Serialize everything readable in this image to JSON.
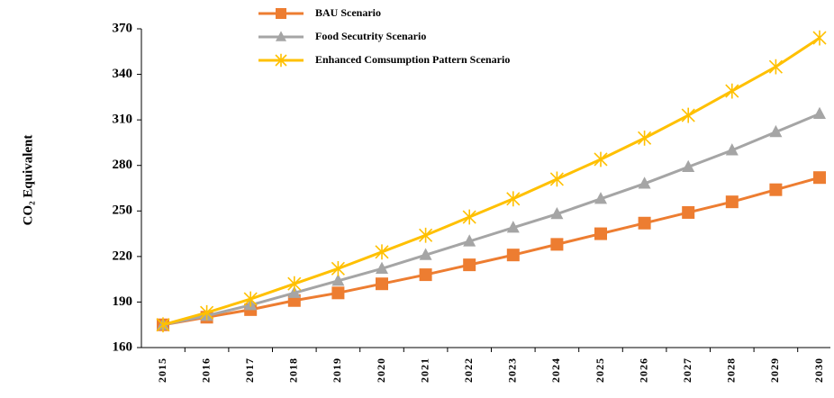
{
  "chart_data": {
    "type": "line",
    "y_label": "CO₂ Equivalent",
    "categories": [
      "2015",
      "2016",
      "2017",
      "2018",
      "2019",
      "2020",
      "2021",
      "2022",
      "2023",
      "2024",
      "2025",
      "2026",
      "2027",
      "2028",
      "2029",
      "2030"
    ],
    "series": [
      {
        "name": "BAU Scenario",
        "color": "#ED7D31",
        "marker": "square",
        "values": [
          175,
          180,
          185,
          191,
          196,
          202,
          208,
          214.5,
          221,
          228,
          235,
          242,
          249,
          256,
          264,
          272
        ]
      },
      {
        "name": "Food Secutrity Scenario",
        "color": "#A5A5A5",
        "marker": "triangle",
        "values": [
          175,
          181,
          188,
          196,
          204,
          212,
          221,
          230,
          239,
          248,
          258,
          268,
          279,
          290,
          302,
          314
        ]
      },
      {
        "name": "Enhanced Comsumption Pattern Scenario",
        "color": "#FFC000",
        "marker": "star",
        "values": [
          175,
          183,
          192,
          202,
          212,
          223,
          234,
          246,
          258,
          271,
          284,
          298,
          313,
          329,
          345,
          364
        ]
      }
    ],
    "ylim": [
      160,
      370
    ],
    "yticks": [
      160,
      190,
      220,
      250,
      280,
      310,
      340,
      370
    ],
    "grid": false,
    "legend": "top"
  }
}
